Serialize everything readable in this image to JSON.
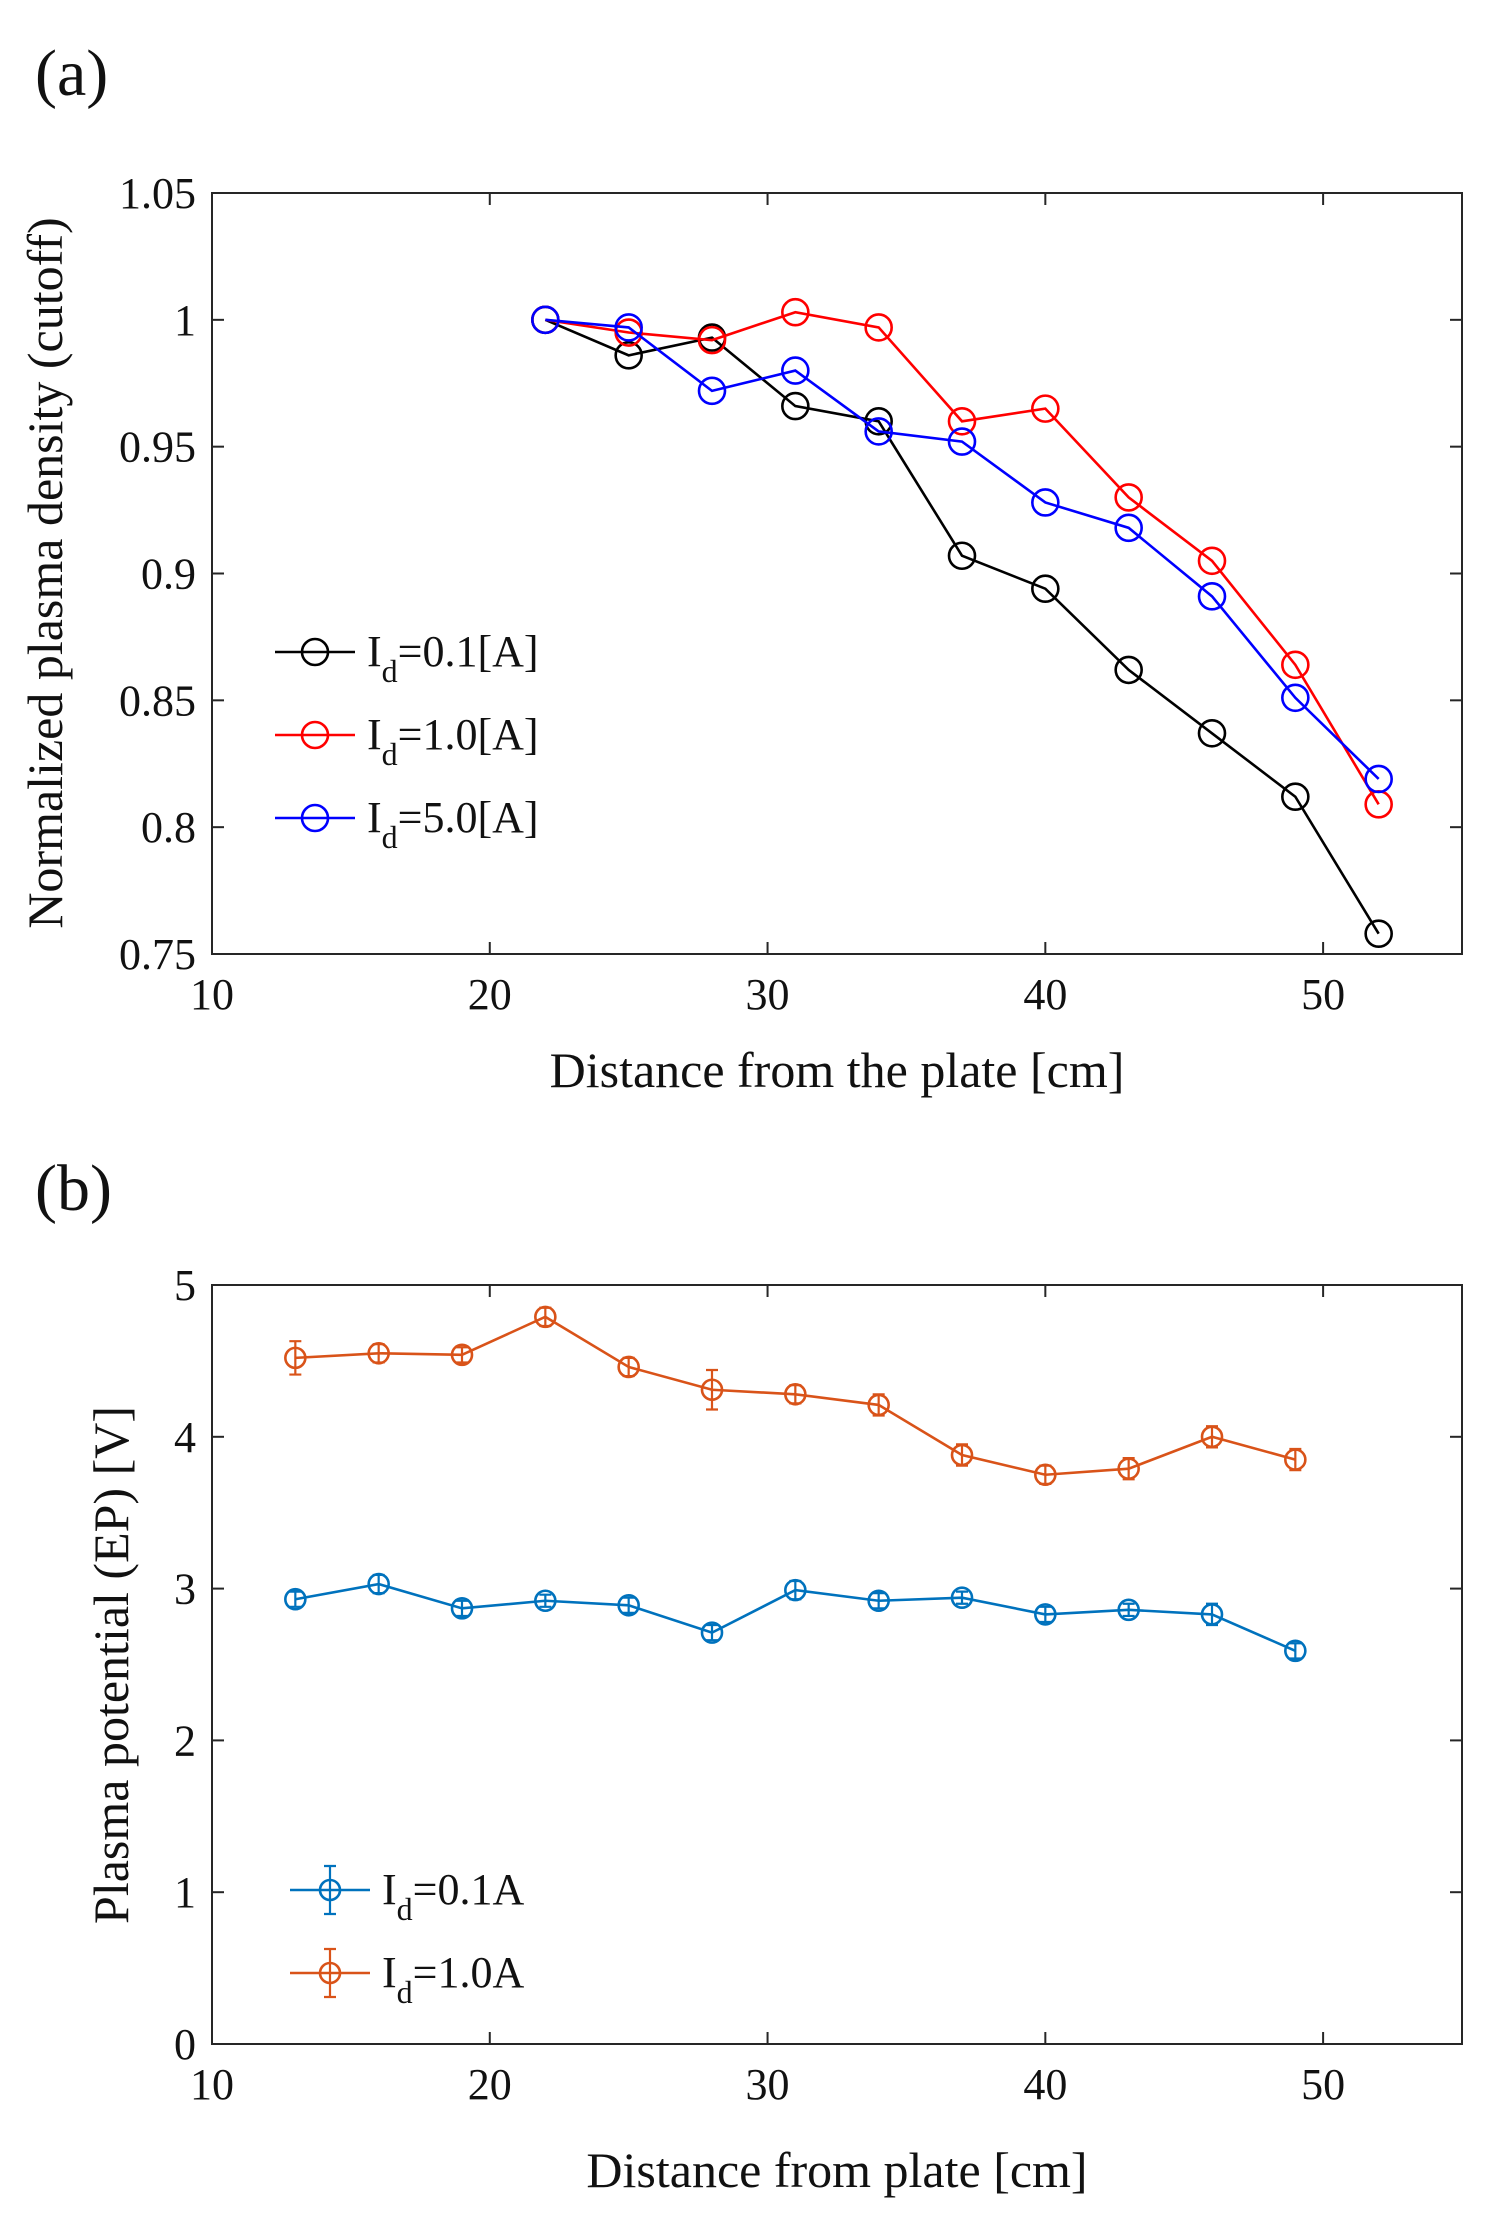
{
  "chart_data": [
    {
      "id": "a",
      "panel_label": "(a)",
      "type": "line",
      "xlabel": "Distance from the plate [cm]",
      "ylabel": "Normalized plasma density (cutoff)",
      "xlim": [
        10,
        55
      ],
      "ylim": [
        0.75,
        1.05
      ],
      "xticks": [
        10,
        20,
        30,
        40,
        50
      ],
      "yticks": [
        0.75,
        0.8,
        0.85,
        0.9,
        0.95,
        1,
        1.05
      ],
      "ytick_labels": [
        "0.75",
        "0.8",
        "0.85",
        "0.9",
        "0.95",
        "1",
        "1.05"
      ],
      "legend_position": "center-left",
      "x": [
        22,
        25,
        28,
        31,
        34,
        37,
        40,
        43,
        46,
        49,
        52
      ],
      "series": [
        {
          "name_main": "I",
          "name_sub": "d",
          "name_rest": "=0.1[A]",
          "color": "#000000",
          "values": [
            1.0,
            0.986,
            0.993,
            0.966,
            0.96,
            0.907,
            0.894,
            0.862,
            0.837,
            0.812,
            0.758
          ]
        },
        {
          "name_main": "I",
          "name_sub": "d",
          "name_rest": "=1.0[A]",
          "color": "#ff0000",
          "values": [
            1.0,
            0.995,
            0.992,
            1.003,
            0.997,
            0.96,
            0.965,
            0.93,
            0.905,
            0.864,
            0.809
          ]
        },
        {
          "name_main": "I",
          "name_sub": "d",
          "name_rest": "=5.0[A]",
          "color": "#0000ff",
          "values": [
            1.0,
            0.997,
            0.972,
            0.98,
            0.956,
            0.952,
            0.928,
            0.918,
            0.891,
            0.851,
            0.819
          ]
        }
      ]
    },
    {
      "id": "b",
      "panel_label": "(b)",
      "type": "line",
      "xlabel": "Distance from plate [cm]",
      "ylabel": "Plasma potential (EP) [V]",
      "xlim": [
        10,
        55
      ],
      "ylim": [
        0,
        5
      ],
      "xticks": [
        10,
        20,
        30,
        40,
        50
      ],
      "yticks": [
        0,
        1,
        2,
        3,
        4,
        5
      ],
      "ytick_labels": [
        "0",
        "1",
        "2",
        "3",
        "4",
        "5"
      ],
      "legend_position": "bottom-left",
      "x": [
        13,
        16,
        19,
        22,
        25,
        28,
        31,
        34,
        37,
        40,
        43,
        46,
        49
      ],
      "series": [
        {
          "name_main": "I",
          "name_sub": "d",
          "name_rest": "=0.1A",
          "color": "#0072bd",
          "values": [
            2.93,
            3.03,
            2.87,
            2.92,
            2.89,
            2.71,
            2.99,
            2.92,
            2.94,
            2.83,
            2.86,
            2.83,
            2.59
          ],
          "errors": [
            0.05,
            0.06,
            0.05,
            0.04,
            0.05,
            0.05,
            0.06,
            0.05,
            0.04,
            0.05,
            0.04,
            0.07,
            0.05
          ]
        },
        {
          "name_main": "I",
          "name_sub": "d",
          "name_rest": "=1.0A",
          "color": "#d95319",
          "values": [
            4.52,
            4.55,
            4.54,
            4.79,
            4.46,
            4.31,
            4.28,
            4.21,
            3.88,
            3.75,
            3.79,
            4.0,
            3.85
          ],
          "errors": [
            0.11,
            0.06,
            0.05,
            0.06,
            0.06,
            0.13,
            0.06,
            0.07,
            0.07,
            0.06,
            0.07,
            0.07,
            0.07
          ]
        }
      ]
    }
  ]
}
